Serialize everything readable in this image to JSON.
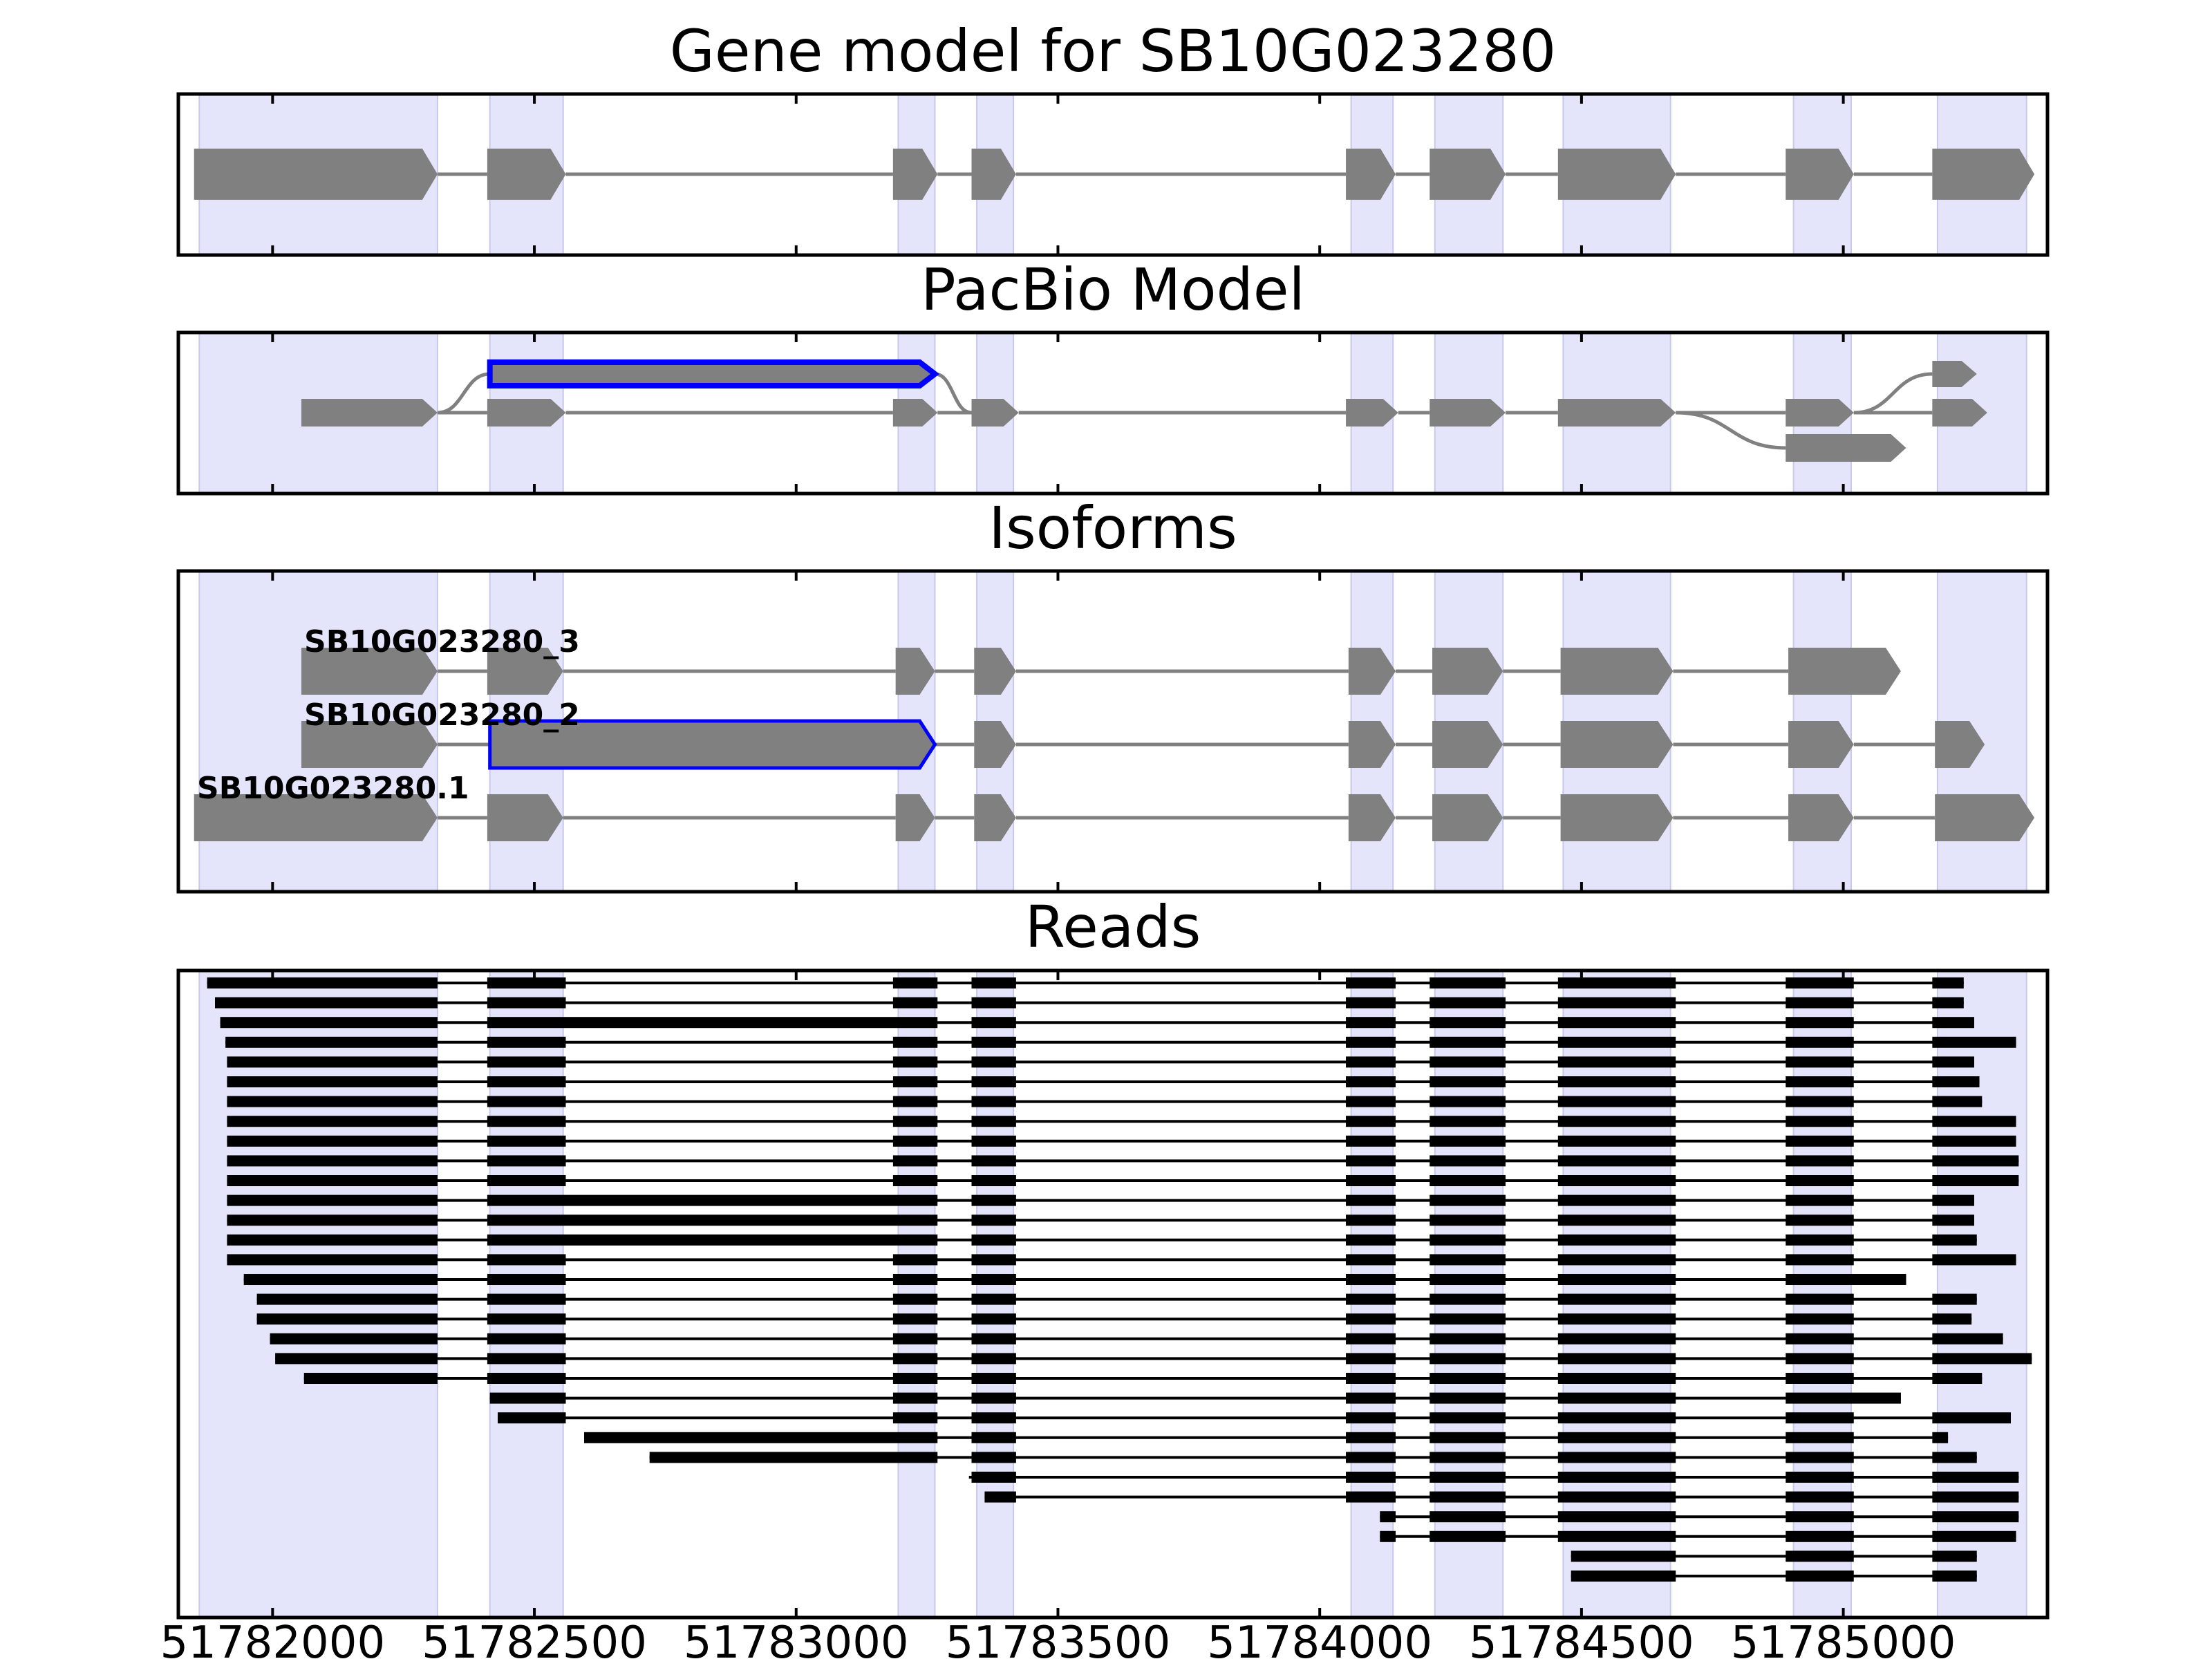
{
  "figure": {
    "panels": [
      {
        "id": "gene",
        "title": "Gene model for SB10G023280"
      },
      {
        "id": "pacbio",
        "title": "PacBio Model"
      },
      {
        "id": "isoforms",
        "title": "Isoforms"
      },
      {
        "id": "reads",
        "title": "Reads"
      }
    ],
    "x_axis": {
      "ticks": [
        51782000,
        51782500,
        51783000,
        51783500,
        51784000,
        51784500,
        51785000
      ],
      "tick_labels": [
        "51782000",
        "51782500",
        "51783000",
        "51783500",
        "51784000",
        "51784500",
        "51785000"
      ],
      "range": [
        51781820,
        51785390
      ]
    },
    "colors": {
      "exon": "#808080",
      "highlight": "#0000ff",
      "shade": "#e4e4fb",
      "read": "#000000"
    },
    "shaded_regions": [
      [
        51781860,
        51782315
      ],
      [
        51782415,
        51782555
      ],
      [
        51783195,
        51783265
      ],
      [
        51783345,
        51783415
      ],
      [
        51784060,
        51784140
      ],
      [
        51784220,
        51784350
      ],
      [
        51784465,
        51784670
      ],
      [
        51784905,
        51785015
      ],
      [
        51785180,
        51785350
      ]
    ],
    "gene_model": {
      "exons": [
        [
          51781850,
          51782315
        ],
        [
          51782410,
          51782560
        ],
        [
          51783185,
          51783270
        ],
        [
          51783335,
          51783420
        ],
        [
          51784050,
          51784145
        ],
        [
          51784210,
          51784355
        ],
        [
          51784455,
          51784680
        ],
        [
          51784890,
          51785020
        ],
        [
          51785170,
          51785365
        ]
      ]
    },
    "pacbio_model": {
      "rows": [
        {
          "exons": [
            [
              51782415,
              51783265
            ]
          ],
          "highlight": true
        },
        {
          "exons": [
            [
              51782055,
              51782315
            ],
            [
              51782410,
              51782560
            ],
            [
              51783185,
              51783270
            ],
            [
              51783335,
              51783425
            ],
            [
              51784050,
              51784150
            ],
            [
              51784210,
              51784355
            ],
            [
              51784455,
              51784680
            ],
            [
              51784890,
              51785020
            ],
            [
              51785170,
              51785275
            ]
          ]
        },
        {
          "exons": [
            [
              51784890,
              51785120
            ]
          ]
        },
        {
          "exons": [
            [
              51785170,
              51785255
            ]
          ]
        }
      ]
    },
    "isoforms": [
      {
        "name": "SB10G023280_3",
        "exons": [
          [
            51782055,
            51782315
          ],
          [
            51782410,
            51782555
          ],
          [
            51783190,
            51783265
          ],
          [
            51783340,
            51783420
          ],
          [
            51784055,
            51784145
          ],
          [
            51784215,
            51784350
          ],
          [
            51784460,
            51784675
          ],
          [
            51784895,
            51785110
          ]
        ]
      },
      {
        "name": "SB10G023280_2",
        "exons": [
          [
            51782055,
            51782315
          ],
          [
            51782415,
            51783265
          ],
          [
            51783340,
            51783420
          ],
          [
            51784055,
            51784145
          ],
          [
            51784215,
            51784350
          ],
          [
            51784460,
            51784675
          ],
          [
            51784895,
            51785020
          ],
          [
            51785175,
            51785270
          ]
        ],
        "highlight_exon": 1
      },
      {
        "name": "SB10G023280.1",
        "exons": [
          [
            51781850,
            51782315
          ],
          [
            51782410,
            51782555
          ],
          [
            51783190,
            51783265
          ],
          [
            51783340,
            51783420
          ],
          [
            51784055,
            51784145
          ],
          [
            51784215,
            51784350
          ],
          [
            51784460,
            51784675
          ],
          [
            51784895,
            51785020
          ],
          [
            51785175,
            51785365
          ]
        ]
      }
    ],
    "reads": {
      "rows": [
        {
          "start": 51781875,
          "end": 51785230,
          "pacbio_long": false
        },
        {
          "start": 51781890,
          "end": 51785230
        },
        {
          "start": 51781900,
          "end": 51785250,
          "long_second": true
        },
        {
          "start": 51781910,
          "end": 51785330
        },
        {
          "start": 51781913,
          "end": 51785250
        },
        {
          "start": 51781913,
          "end": 51785260
        },
        {
          "start": 51781913,
          "end": 51785265
        },
        {
          "start": 51781913,
          "end": 51785330
        },
        {
          "start": 51781913,
          "end": 51785330
        },
        {
          "start": 51781913,
          "end": 51785335
        },
        {
          "start": 51781913,
          "end": 51785335
        },
        {
          "start": 51781913,
          "end": 51785250,
          "long_second": true
        },
        {
          "start": 51781913,
          "end": 51785250,
          "long_second": true
        },
        {
          "start": 51781913,
          "end": 51785255,
          "long_second": true
        },
        {
          "start": 51781913,
          "end": 51785330
        },
        {
          "start": 51781945,
          "end": 51785120,
          "last_is_5th": true
        },
        {
          "start": 51781970,
          "end": 51785255
        },
        {
          "start": 51781970,
          "end": 51785245
        },
        {
          "start": 51781995,
          "end": 51785305
        },
        {
          "start": 51782005,
          "end": 51785360
        },
        {
          "start": 51782060,
          "end": 51785265
        },
        {
          "start": 51782415,
          "end": 51785110,
          "last_is_5th": true
        },
        {
          "start": 51782430,
          "end": 51785320
        },
        {
          "start": 51782595,
          "end": 51785200,
          "long_second_from": 51782595
        },
        {
          "start": 51782720,
          "end": 51785255,
          "long_second_from": 51782720
        },
        {
          "start": 51783330,
          "end": 51785335
        },
        {
          "start": 51783360,
          "end": 51785335
        },
        {
          "start": 51784115,
          "end": 51785335
        },
        {
          "start": 51784115,
          "end": 51785330
        },
        {
          "start": 51784480,
          "end": 51785255
        },
        {
          "start": 51784480,
          "end": 51785255
        }
      ]
    }
  }
}
